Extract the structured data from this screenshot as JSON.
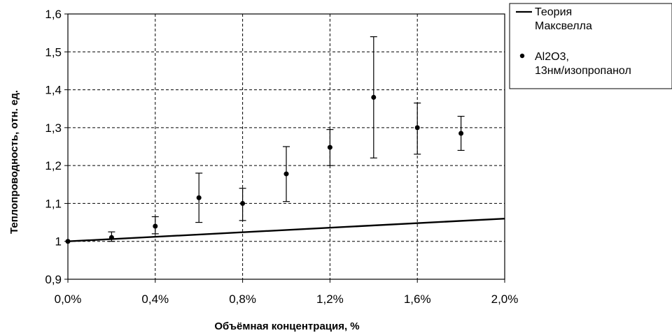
{
  "chart_data": {
    "type": "scatter",
    "xlabel": "Объёмная концентрация, %",
    "ylabel": "Теплопроводность, отн. ед.",
    "xlim": [
      0,
      2.0
    ],
    "ylim": [
      0.9,
      1.6
    ],
    "x_ticks": [
      0,
      0.4,
      0.8,
      1.2,
      1.6,
      2.0
    ],
    "x_tick_labels": [
      "0,0%",
      "0,4%",
      "0,8%",
      "1,2%",
      "1,6%",
      "2,0%"
    ],
    "y_ticks": [
      0.9,
      1.0,
      1.1,
      1.2,
      1.3,
      1.4,
      1.5,
      1.6
    ],
    "y_tick_labels": [
      "0,9",
      "1",
      "1,1",
      "1,2",
      "1,3",
      "1,4",
      "1,5",
      "1,6"
    ],
    "grid": true,
    "legend_position": "right",
    "series": [
      {
        "name": "Теория Максвелла",
        "legend_lines": [
          "Теория",
          "Максвелла"
        ],
        "kind": "line",
        "x": [
          0,
          2.0
        ],
        "y": [
          1.0,
          1.06
        ]
      },
      {
        "name": "Al2O3, 13нм/изопропанол",
        "legend_lines": [
          "Al2O3,",
          "13нм/изопропанол"
        ],
        "kind": "points",
        "x": [
          0,
          0.2,
          0.4,
          0.6,
          0.8,
          1.0,
          1.2,
          1.4,
          1.6,
          1.8
        ],
        "y": [
          1.0,
          1.01,
          1.04,
          1.115,
          1.1,
          1.178,
          1.248,
          1.38,
          1.3,
          1.285
        ],
        "err_low": [
          1.0,
          1.0,
          1.02,
          1.05,
          1.055,
          1.105,
          1.2,
          1.22,
          1.23,
          1.24
        ],
        "err_high": [
          1.0,
          1.025,
          1.065,
          1.18,
          1.14,
          1.25,
          1.295,
          1.54,
          1.365,
          1.33
        ]
      }
    ]
  }
}
